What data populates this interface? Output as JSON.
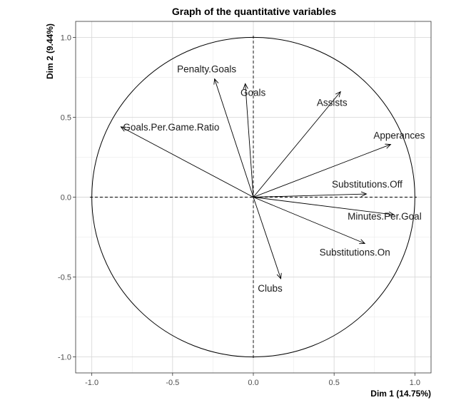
{
  "chart_data": {
    "type": "scatter",
    "subtype": "pca-correlation-circle",
    "title": "Graph of the quantitative variables",
    "xlabel": "Dim 1 (14.75%)",
    "ylabel": "Dim 2 (9.44%)",
    "xlim": [
      -1.1,
      1.1
    ],
    "ylim": [
      -1.1,
      1.1
    ],
    "x_ticks": [
      -1.0,
      -0.5,
      0.0,
      0.5,
      1.0
    ],
    "y_ticks": [
      -1.0,
      -0.5,
      0.0,
      0.5,
      1.0
    ],
    "x_tick_labels": [
      "-1.0",
      "-0.5",
      "0.0",
      "0.5",
      "1.0"
    ],
    "y_tick_labels": [
      "-1.0",
      "-0.5",
      "0.0",
      "0.5",
      "1.0"
    ],
    "grid": true,
    "unit_circle": true,
    "variables": [
      {
        "name": "Penalty.Goals",
        "x": -0.24,
        "y": 0.74
      },
      {
        "name": "Goals",
        "x": -0.05,
        "y": 0.71
      },
      {
        "name": "Assists",
        "x": 0.54,
        "y": 0.66
      },
      {
        "name": "Goals.Per.Game.Ratio",
        "x": -0.82,
        "y": 0.44
      },
      {
        "name": "Apperances",
        "x": 0.85,
        "y": 0.33
      },
      {
        "name": "Substitutions.Off",
        "x": 0.7,
        "y": 0.02
      },
      {
        "name": "Minutes.Per.Goal",
        "x": 0.87,
        "y": -0.11
      },
      {
        "name": "Substitutions.On",
        "x": 0.69,
        "y": -0.29
      },
      {
        "name": "Clubs",
        "x": 0.17,
        "y": -0.51
      }
    ],
    "colors": {
      "arrow": "#000000",
      "grid_major": "#d9d9d9",
      "grid_minor": "#ebebeb",
      "panel_border": "#333333"
    }
  }
}
